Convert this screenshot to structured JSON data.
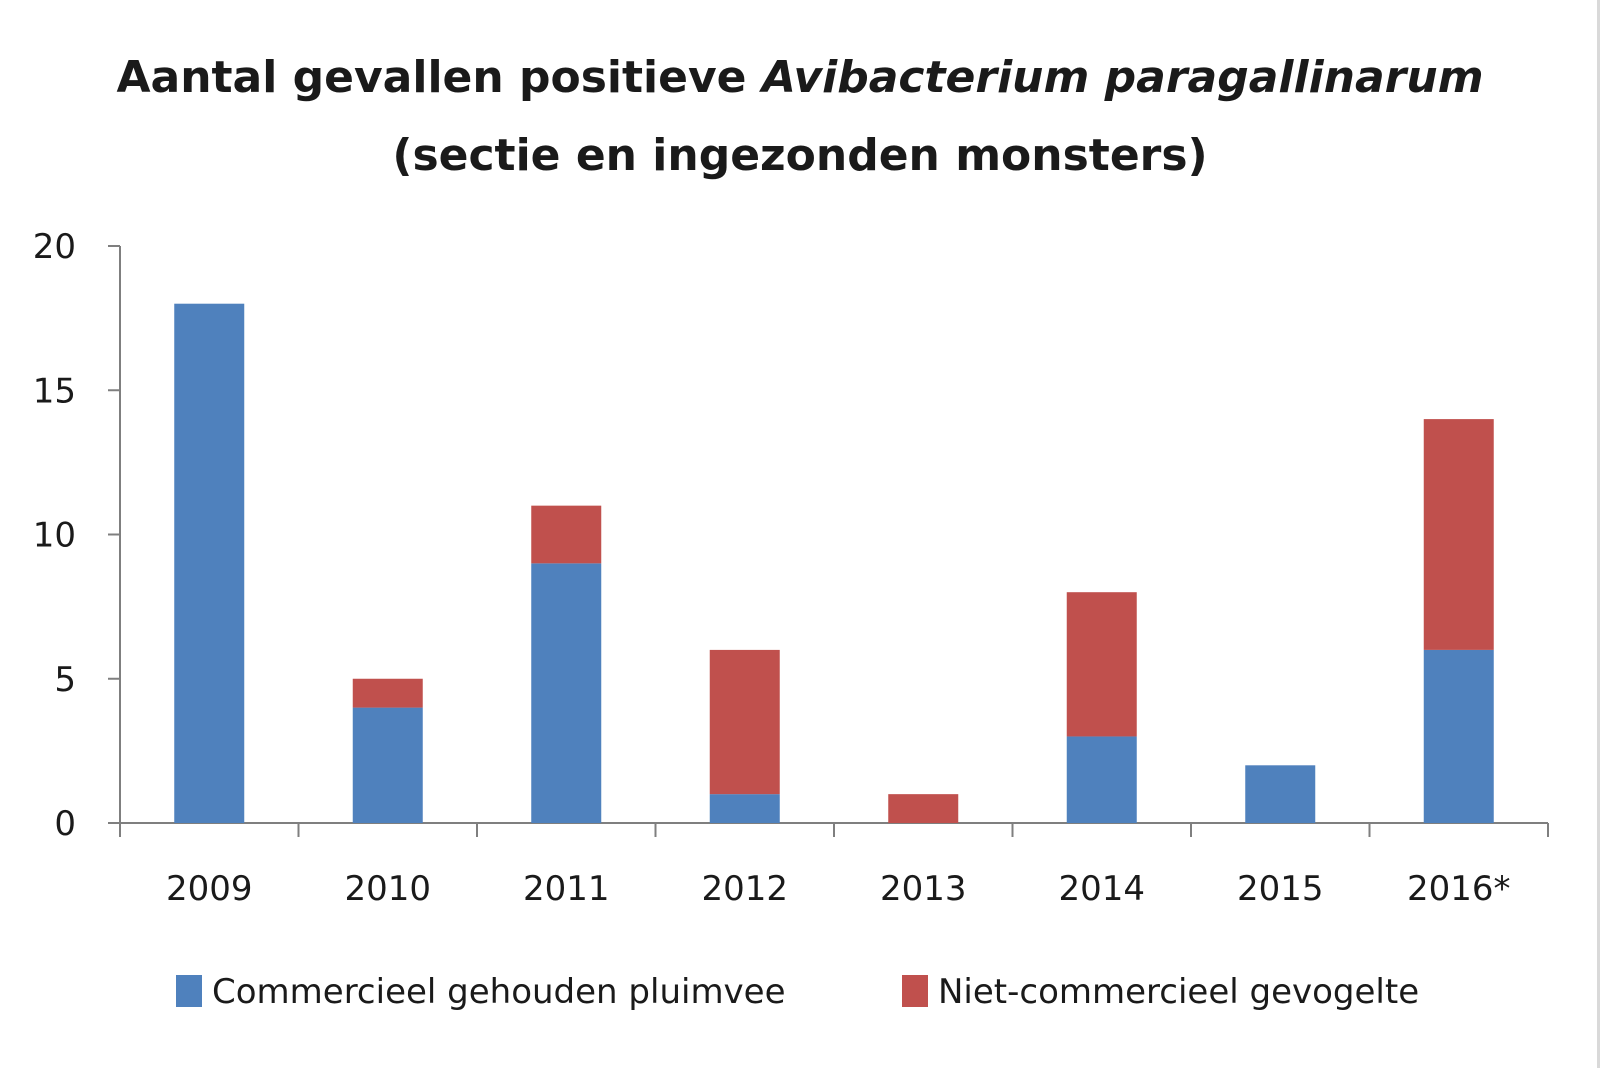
{
  "chart_data": {
    "type": "bar",
    "stacked": true,
    "title_part1": "Aantal gevallen positieve ",
    "title_italic": "Avibacterium paragallinarum",
    "subtitle": "(sectie en ingezonden monsters)",
    "categories": [
      "2009",
      "2010",
      "2011",
      "2012",
      "2013",
      "2014",
      "2015",
      "2016*"
    ],
    "series": [
      {
        "name": "Commercieel gehouden pluimvee",
        "color": "#4f81bd",
        "values": [
          18,
          4,
          9,
          1,
          0,
          3,
          2,
          6
        ]
      },
      {
        "name": "Niet-commercieel gevogelte",
        "color": "#c0504d",
        "values": [
          0,
          1,
          2,
          5,
          1,
          5,
          0,
          8
        ]
      }
    ],
    "ylim": [
      0,
      20
    ],
    "yticks": [
      0,
      5,
      10,
      15,
      20
    ],
    "xlabel": "",
    "ylabel": "",
    "grid": false,
    "legend": "bottom"
  }
}
